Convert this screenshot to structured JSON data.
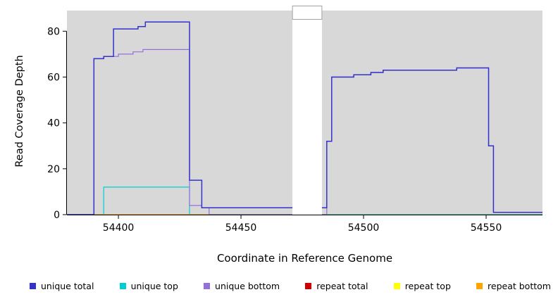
{
  "figure": {
    "bg": "#ffffff",
    "panel_bg": "#d8d8d8",
    "gap_fill": "#ffffff",
    "gap_box_border": "#a0a0a0"
  },
  "chart_data": {
    "type": "line",
    "step": true,
    "title": "",
    "xlabel": "Coordinate in Reference Genome",
    "ylabel": "Read Coverage Depth",
    "xlim": [
      54379,
      54573
    ],
    "ylim": [
      0,
      89
    ],
    "x_ticks": [
      54400,
      54450,
      54500,
      54550
    ],
    "y_ticks": [
      0,
      20,
      40,
      60,
      80
    ],
    "grid": false,
    "legend_position": "bottom",
    "panels": [
      {
        "x0": 54379,
        "x1": 54471
      },
      {
        "x0": 54483,
        "x1": 54573
      }
    ],
    "gap": {
      "x0": 54471,
      "x1": 54483
    },
    "series": [
      {
        "name": "repeat total",
        "color": "#cc0000",
        "width": 1.2,
        "points": [
          [
            54379,
            0
          ],
          [
            54573,
            0
          ]
        ]
      },
      {
        "name": "repeat top",
        "color": "#ffff00",
        "width": 1.2,
        "points": [
          [
            54379,
            0
          ],
          [
            54573,
            0
          ]
        ]
      },
      {
        "name": "unique top",
        "color": "#00ced1",
        "width": 1.2,
        "points": [
          [
            54379,
            0
          ],
          [
            54394,
            0
          ],
          [
            54394,
            12
          ],
          [
            54429,
            12
          ],
          [
            54429,
            0
          ],
          [
            54573,
            0
          ]
        ]
      },
      {
        "name": "repeat bottom",
        "color": "#ffa500",
        "width": 1.2,
        "points": [
          [
            54390,
            0
          ],
          [
            54437,
            0
          ]
        ]
      },
      {
        "name": "unique bottom",
        "color": "#9370db",
        "width": 1.2,
        "points": [
          [
            54379,
            0
          ],
          [
            54390,
            0
          ],
          [
            54390,
            68
          ],
          [
            54394,
            68
          ],
          [
            54394,
            69
          ],
          [
            54400,
            69
          ],
          [
            54400,
            70
          ],
          [
            54406,
            70
          ],
          [
            54406,
            71
          ],
          [
            54410,
            71
          ],
          [
            54410,
            72
          ],
          [
            54429,
            72
          ],
          [
            54429,
            4
          ],
          [
            54434,
            4
          ],
          [
            54434,
            3
          ],
          [
            54437,
            3
          ],
          [
            54437,
            0
          ],
          [
            54485,
            0
          ],
          [
            54485,
            32
          ],
          [
            54487,
            32
          ],
          [
            54487,
            60
          ],
          [
            54496,
            60
          ],
          [
            54496,
            61
          ],
          [
            54503,
            61
          ],
          [
            54503,
            62
          ],
          [
            54508,
            62
          ],
          [
            54508,
            63
          ],
          [
            54538,
            63
          ],
          [
            54538,
            64
          ],
          [
            54551,
            64
          ],
          [
            54551,
            30
          ],
          [
            54553,
            30
          ],
          [
            54553,
            1
          ],
          [
            54573,
            1
          ]
        ]
      },
      {
        "name": "unique total",
        "color": "#3333cc",
        "width": 1.5,
        "points": [
          [
            54379,
            0
          ],
          [
            54390,
            0
          ],
          [
            54390,
            68
          ],
          [
            54394,
            68
          ],
          [
            54394,
            69
          ],
          [
            54398,
            69
          ],
          [
            54398,
            81
          ],
          [
            54408,
            81
          ],
          [
            54408,
            82
          ],
          [
            54411,
            82
          ],
          [
            54411,
            84
          ],
          [
            54429,
            84
          ],
          [
            54429,
            15
          ],
          [
            54434,
            15
          ],
          [
            54434,
            3
          ],
          [
            54485,
            3
          ],
          [
            54485,
            32
          ],
          [
            54487,
            32
          ],
          [
            54487,
            60
          ],
          [
            54496,
            60
          ],
          [
            54496,
            61
          ],
          [
            54503,
            61
          ],
          [
            54503,
            62
          ],
          [
            54508,
            62
          ],
          [
            54508,
            63
          ],
          [
            54538,
            63
          ],
          [
            54538,
            64
          ],
          [
            54551,
            64
          ],
          [
            54551,
            30
          ],
          [
            54553,
            30
          ],
          [
            54553,
            1
          ],
          [
            54573,
            1
          ]
        ]
      }
    ]
  },
  "legend": {
    "items": [
      {
        "label": "unique total",
        "color": "#3333cc"
      },
      {
        "label": "unique top",
        "color": "#00ced1"
      },
      {
        "label": "unique bottom",
        "color": "#9370db"
      },
      {
        "label": "repeat total",
        "color": "#cc0000"
      },
      {
        "label": "repeat top",
        "color": "#ffff00"
      },
      {
        "label": "repeat bottom",
        "color": "#ffa500"
      }
    ]
  }
}
